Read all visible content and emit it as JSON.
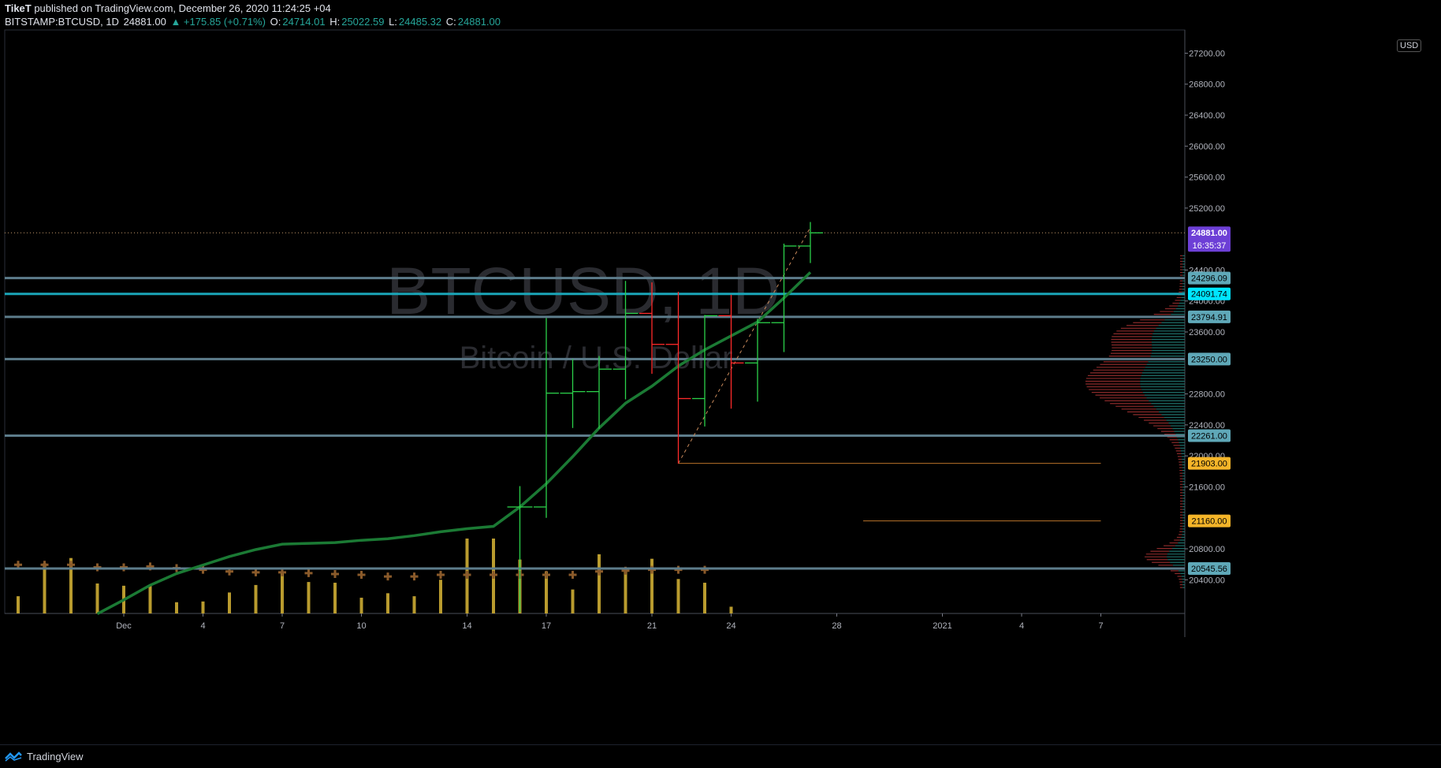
{
  "header": {
    "author": "TikeT",
    "published_text": " published on TradingView.com, December 26, 2020 11:24:25 +04",
    "symbol": "BITSTAMP:BTCUSD, 1D",
    "last": "24881.00",
    "change": "▲ +175.85 (+0.71%)",
    "o_label": "O:",
    "o_value": "24714.01",
    "h_label": "H:",
    "h_value": "25022.59",
    "l_label": "L:",
    "l_value": "24485.32",
    "c_label": "C:",
    "c_value": "24881.00"
  },
  "footer": {
    "brand": "TradingView"
  },
  "currency_badge": "USD",
  "chart_data": {
    "type": "ohlc",
    "watermark_title": "BTCUSD, 1D",
    "watermark_subtitle": "Bitcoin / U.S. Dollar",
    "ylim": [
      19965,
      27500
    ],
    "y_ticks": [
      "27200.00",
      "26800.00",
      "26400.00",
      "26000.00",
      "25600.00",
      "25200.00",
      "24400.00",
      "24000.00",
      "23600.00",
      "22800.00",
      "22400.00",
      "22000.00",
      "21600.00",
      "20800.00",
      "20400.00"
    ],
    "x_ticks": [
      {
        "label": "Dec",
        "x": "2020-12-01"
      },
      {
        "label": "4",
        "x": "2020-12-04"
      },
      {
        "label": "7",
        "x": "2020-12-07"
      },
      {
        "label": "10",
        "x": "2020-12-10"
      },
      {
        "label": "14",
        "x": "2020-12-14"
      },
      {
        "label": "17",
        "x": "2020-12-17"
      },
      {
        "label": "21",
        "x": "2020-12-21"
      },
      {
        "label": "24",
        "x": "2020-12-24"
      },
      {
        "label": "28",
        "x": "2020-12-28"
      },
      {
        "label": "2021",
        "x": "2021-01-01"
      },
      {
        "label": "4",
        "x": "2021-01-04"
      },
      {
        "label": "7",
        "x": "2021-01-07"
      }
    ],
    "candles": [
      {
        "date": "2020-12-16",
        "open": 21340,
        "high": 21610,
        "low": 19980,
        "close": 21340,
        "color": "#26a69a"
      },
      {
        "date": "2020-12-17",
        "open": 21340,
        "high": 23780,
        "low": 21200,
        "close": 22810,
        "color": "#26a69a"
      },
      {
        "date": "2020-12-18",
        "open": 22810,
        "high": 23250,
        "low": 22360,
        "close": 22830,
        "color": "#26a69a"
      },
      {
        "date": "2020-12-19",
        "open": 22830,
        "high": 23290,
        "low": 22350,
        "close": 23120,
        "color": "#26a69a"
      },
      {
        "date": "2020-12-20",
        "open": 23120,
        "high": 24260,
        "low": 22730,
        "close": 23840,
        "color": "#26a69a"
      },
      {
        "date": "2020-12-21",
        "open": 23840,
        "high": 24240,
        "low": 23060,
        "close": 23440,
        "color": "#ef5350"
      },
      {
        "date": "2020-12-22",
        "open": 23440,
        "high": 24120,
        "low": 21900,
        "close": 22740,
        "color": "#ef5350"
      },
      {
        "date": "2020-12-23",
        "open": 22740,
        "high": 23820,
        "low": 22380,
        "close": 23810,
        "color": "#26a69a"
      },
      {
        "date": "2020-12-24",
        "open": 23810,
        "high": 24080,
        "low": 22610,
        "close": 23200,
        "color": "#ef5350"
      },
      {
        "date": "2020-12-25",
        "open": 23200,
        "high": 23770,
        "low": 22700,
        "close": 23720,
        "color": "#26a69a"
      },
      {
        "date": "2020-12-26",
        "open": 23720,
        "high": 24740,
        "low": 23340,
        "close": 24710,
        "color": "#26a69a"
      },
      {
        "date": "2020-12-27",
        "open": 24710,
        "high": 25020,
        "low": 24490,
        "close": 24880,
        "color": "#26a69a"
      }
    ],
    "moving_average": [
      {
        "date": "2020-11-30",
        "value": 19960
      },
      {
        "date": "2020-12-01",
        "value": 20140
      },
      {
        "date": "2020-12-02",
        "value": 20330
      },
      {
        "date": "2020-12-03",
        "value": 20480
      },
      {
        "date": "2020-12-04",
        "value": 20590
      },
      {
        "date": "2020-12-05",
        "value": 20700
      },
      {
        "date": "2020-12-06",
        "value": 20790
      },
      {
        "date": "2020-12-07",
        "value": 20860
      },
      {
        "date": "2020-12-08",
        "value": 20870
      },
      {
        "date": "2020-12-09",
        "value": 20880
      },
      {
        "date": "2020-12-10",
        "value": 20910
      },
      {
        "date": "2020-12-11",
        "value": 20930
      },
      {
        "date": "2020-12-12",
        "value": 20970
      },
      {
        "date": "2020-12-13",
        "value": 21020
      },
      {
        "date": "2020-12-14",
        "value": 21060
      },
      {
        "date": "2020-12-15",
        "value": 21090
      },
      {
        "date": "2020-12-16",
        "value": 21340
      },
      {
        "date": "2020-12-17",
        "value": 21640
      },
      {
        "date": "2020-12-18",
        "value": 21990
      },
      {
        "date": "2020-12-19",
        "value": 22360
      },
      {
        "date": "2020-12-20",
        "value": 22680
      },
      {
        "date": "2020-12-21",
        "value": 22900
      },
      {
        "date": "2020-12-22",
        "value": 23160
      },
      {
        "date": "2020-12-23",
        "value": 23370
      },
      {
        "date": "2020-12-24",
        "value": 23550
      },
      {
        "date": "2020-12-25",
        "value": 23730
      },
      {
        "date": "2020-12-26",
        "value": 24040
      },
      {
        "date": "2020-12-27",
        "value": 24370
      }
    ],
    "volume": [
      {
        "date": "2020-11-25",
        "value": 0.55
      },
      {
        "date": "2020-11-26",
        "value": 0.28
      },
      {
        "date": "2020-11-27",
        "value": 0.23
      },
      {
        "date": "2020-11-28",
        "value": 0.67
      },
      {
        "date": "2020-11-29",
        "value": 0.74
      },
      {
        "date": "2020-11-30",
        "value": 0.4
      },
      {
        "date": "2020-12-01",
        "value": 0.37
      },
      {
        "date": "2020-12-02",
        "value": 0.37
      },
      {
        "date": "2020-12-03",
        "value": 0.15
      },
      {
        "date": "2020-12-04",
        "value": 0.16
      },
      {
        "date": "2020-12-05",
        "value": 0.28
      },
      {
        "date": "2020-12-06",
        "value": 0.38
      },
      {
        "date": "2020-12-07",
        "value": 0.55
      },
      {
        "date": "2020-12-08",
        "value": 0.42
      },
      {
        "date": "2020-12-09",
        "value": 0.41
      },
      {
        "date": "2020-12-10",
        "value": 0.21
      },
      {
        "date": "2020-12-11",
        "value": 0.27
      },
      {
        "date": "2020-12-12",
        "value": 0.23
      },
      {
        "date": "2020-12-13",
        "value": 0.45
      },
      {
        "date": "2020-12-14",
        "value": 1.0
      },
      {
        "date": "2020-12-15",
        "value": 1.0
      },
      {
        "date": "2020-12-16",
        "value": 0.72
      },
      {
        "date": "2020-12-17",
        "value": 0.56
      },
      {
        "date": "2020-12-18",
        "value": 0.32
      },
      {
        "date": "2020-12-19",
        "value": 0.79
      },
      {
        "date": "2020-12-20",
        "value": 0.59
      },
      {
        "date": "2020-12-21",
        "value": 0.73
      },
      {
        "date": "2020-12-22",
        "value": 0.46
      },
      {
        "date": "2020-12-23",
        "value": 0.41
      },
      {
        "date": "2020-12-24",
        "value": 0.09
      }
    ],
    "volume_ma": [
      {
        "date": "2020-11-25",
        "value": 0.62
      },
      {
        "date": "2020-11-26",
        "value": 0.62
      },
      {
        "date": "2020-11-27",
        "value": 0.58
      },
      {
        "date": "2020-11-28",
        "value": 0.58
      },
      {
        "date": "2020-11-29",
        "value": 0.58
      },
      {
        "date": "2020-11-30",
        "value": 0.55
      },
      {
        "date": "2020-12-01",
        "value": 0.55
      },
      {
        "date": "2020-12-02",
        "value": 0.56
      },
      {
        "date": "2020-12-03",
        "value": 0.54
      },
      {
        "date": "2020-12-04",
        "value": 0.52
      },
      {
        "date": "2020-12-05",
        "value": 0.5
      },
      {
        "date": "2020-12-06",
        "value": 0.49
      },
      {
        "date": "2020-12-07",
        "value": 0.49
      },
      {
        "date": "2020-12-08",
        "value": 0.48
      },
      {
        "date": "2020-12-09",
        "value": 0.47
      },
      {
        "date": "2020-12-10",
        "value": 0.46
      },
      {
        "date": "2020-12-11",
        "value": 0.44
      },
      {
        "date": "2020-12-12",
        "value": 0.44
      },
      {
        "date": "2020-12-13",
        "value": 0.46
      },
      {
        "date": "2020-12-14",
        "value": 0.46
      },
      {
        "date": "2020-12-15",
        "value": 0.46
      },
      {
        "date": "2020-12-16",
        "value": 0.46
      },
      {
        "date": "2020-12-17",
        "value": 0.46
      },
      {
        "date": "2020-12-18",
        "value": 0.46
      },
      {
        "date": "2020-12-19",
        "value": 0.5
      },
      {
        "date": "2020-12-20",
        "value": 0.51
      },
      {
        "date": "2020-12-21",
        "value": 0.52
      },
      {
        "date": "2020-12-22",
        "value": 0.52
      },
      {
        "date": "2020-12-23",
        "value": 0.52
      }
    ],
    "horizontal_levels": [
      {
        "value": 24296.09,
        "label": "24296.09",
        "color": "#5d7c8b",
        "label_bg": "#5fa8b8",
        "label_color": "#000"
      },
      {
        "value": 24091.74,
        "label": "24091.74",
        "color": "#1aa6b8",
        "label_bg": "#00e5ff",
        "label_color": "#000"
      },
      {
        "value": 23794.91,
        "label": "23794.91",
        "color": "#5d7c8b",
        "label_bg": "#5fa8b8",
        "label_color": "#000"
      },
      {
        "value": 23250.0,
        "label": "23250.00",
        "color": "#5d7c8b",
        "label_bg": "#5fa8b8",
        "label_color": "#000"
      },
      {
        "value": 22261.0,
        "label": "22261.00",
        "color": "#5d7c8b",
        "label_bg": "#5fa8b8",
        "label_color": "#000"
      },
      {
        "value": 20545.56,
        "label": "20545.56",
        "color": "#5d7c8b",
        "label_bg": "#5fa8b8",
        "label_color": "#000"
      }
    ],
    "ray_levels": [
      {
        "value": 21903.0,
        "label": "21903.00",
        "from": "2020-12-22",
        "to": "2021-01-07",
        "color": "#b8732a",
        "label_bg": "#f5b529"
      },
      {
        "value": 21160.0,
        "label": "21160.00",
        "from": "2020-12-29",
        "to": "2021-01-07",
        "color": "#b8732a",
        "label_bg": "#f5b529"
      }
    ],
    "trend_line": {
      "from": {
        "date": "2020-12-22",
        "value": 21903
      },
      "to": {
        "date": "2020-12-27",
        "value": 24950
      },
      "color": "#c98a5b"
    },
    "last_price": {
      "value": 24881.0,
      "label": "24881.00",
      "countdown": "16:35:37",
      "bg": "#6d3fd6"
    },
    "grid": false,
    "legend": "none"
  }
}
